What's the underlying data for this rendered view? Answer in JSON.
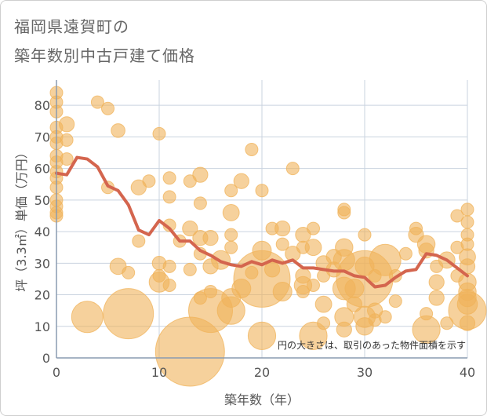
{
  "title_line1": "福岡県遠賀町の",
  "title_line2": "築年数別中古戸建て価格",
  "chart_data": {
    "type": "scatter",
    "title": "福岡県遠賀町の築年数別中古戸建て価格",
    "xlabel": "築年数（年）",
    "ylabel": "坪（3.3㎡）単価（万円）",
    "xlim": [
      0,
      40
    ],
    "ylim": [
      0,
      88
    ],
    "xticks": [
      0,
      10,
      20,
      30,
      40
    ],
    "yticks": [
      0,
      10,
      20,
      30,
      40,
      50,
      60,
      70,
      80
    ],
    "grid": true,
    "note": "円の大きさは、取引のあった物件面積を示す",
    "colors": {
      "bubble": "#f0b35a",
      "line": "#d4654e",
      "grid": "#c9d3df",
      "axis": "#8a9bb0"
    },
    "series": [
      {
        "name": "",
        "kind": "bubble",
        "points": [
          {
            "x": 0,
            "y": 84,
            "s": 1
          },
          {
            "x": 0,
            "y": 81,
            "s": 1
          },
          {
            "x": 0,
            "y": 78,
            "s": 1
          },
          {
            "x": 0,
            "y": 73,
            "s": 1
          },
          {
            "x": 0,
            "y": 70,
            "s": 1
          },
          {
            "x": 0,
            "y": 68,
            "s": 1
          },
          {
            "x": 0,
            "y": 64,
            "s": 1
          },
          {
            "x": 0,
            "y": 62,
            "s": 1
          },
          {
            "x": 0,
            "y": 59,
            "s": 1
          },
          {
            "x": 0,
            "y": 57,
            "s": 1
          },
          {
            "x": 0,
            "y": 54,
            "s": 1
          },
          {
            "x": 0,
            "y": 50,
            "s": 1
          },
          {
            "x": 0,
            "y": 48,
            "s": 1
          },
          {
            "x": 0,
            "y": 46,
            "s": 1
          },
          {
            "x": 0,
            "y": 45,
            "s": 1
          },
          {
            "x": 1,
            "y": 74,
            "s": 1.2
          },
          {
            "x": 1,
            "y": 69,
            "s": 1
          },
          {
            "x": 1,
            "y": 63,
            "s": 1
          },
          {
            "x": 4,
            "y": 81,
            "s": 1
          },
          {
            "x": 5,
            "y": 79,
            "s": 1
          },
          {
            "x": 6,
            "y": 72,
            "s": 1.1
          },
          {
            "x": 5,
            "y": 54,
            "s": 1
          },
          {
            "x": 8,
            "y": 54,
            "s": 1.2
          },
          {
            "x": 9,
            "y": 56,
            "s": 1
          },
          {
            "x": 8,
            "y": 37,
            "s": 1
          },
          {
            "x": 7,
            "y": 27,
            "s": 1
          },
          {
            "x": 6,
            "y": 29,
            "s": 1.3
          },
          {
            "x": 3,
            "y": 13,
            "s": 2.5
          },
          {
            "x": 7,
            "y": 14,
            "s": 4
          },
          {
            "x": 10,
            "y": 71,
            "s": 1
          },
          {
            "x": 10,
            "y": 30,
            "s": 1.1
          },
          {
            "x": 10,
            "y": 26,
            "s": 1
          },
          {
            "x": 10,
            "y": 24,
            "s": 1.6
          },
          {
            "x": 11,
            "y": 57,
            "s": 1
          },
          {
            "x": 11,
            "y": 51,
            "s": 1
          },
          {
            "x": 11,
            "y": 42,
            "s": 1
          },
          {
            "x": 11,
            "y": 29,
            "s": 1
          },
          {
            "x": 11,
            "y": 23,
            "s": 1
          },
          {
            "x": 12,
            "y": 37,
            "s": 1
          },
          {
            "x": 13,
            "y": 56,
            "s": 1
          },
          {
            "x": 13,
            "y": 41,
            "s": 1.2
          },
          {
            "x": 13,
            "y": 28,
            "s": 1
          },
          {
            "x": 13,
            "y": 2,
            "s": 5.5
          },
          {
            "x": 14,
            "y": 58,
            "s": 1.2
          },
          {
            "x": 14,
            "y": 49,
            "s": 1
          },
          {
            "x": 14,
            "y": 38,
            "s": 1.2
          },
          {
            "x": 14,
            "y": 33,
            "s": 1
          },
          {
            "x": 14,
            "y": 19,
            "s": 1
          },
          {
            "x": 15,
            "y": 38,
            "s": 1.2
          },
          {
            "x": 15,
            "y": 29,
            "s": 1.2
          },
          {
            "x": 15,
            "y": 21,
            "s": 1
          },
          {
            "x": 15,
            "y": 15,
            "s": 3.5
          },
          {
            "x": 16,
            "y": 31,
            "s": 1.5
          },
          {
            "x": 17,
            "y": 53,
            "s": 1
          },
          {
            "x": 17,
            "y": 46,
            "s": 1.3
          },
          {
            "x": 17,
            "y": 39,
            "s": 1
          },
          {
            "x": 17,
            "y": 35,
            "s": 1
          },
          {
            "x": 17,
            "y": 19,
            "s": 1.5
          },
          {
            "x": 17,
            "y": 15,
            "s": 2.2
          },
          {
            "x": 18,
            "y": 56,
            "s": 1.2
          },
          {
            "x": 18,
            "y": 22,
            "s": 1.5
          },
          {
            "x": 19,
            "y": 66,
            "s": 1
          },
          {
            "x": 19,
            "y": 27,
            "s": 1
          },
          {
            "x": 20,
            "y": 53,
            "s": 1
          },
          {
            "x": 20,
            "y": 34,
            "s": 1.5
          },
          {
            "x": 20,
            "y": 25,
            "s": 4.5
          },
          {
            "x": 20,
            "y": 7,
            "s": 2.2
          },
          {
            "x": 21,
            "y": 41,
            "s": 1
          },
          {
            "x": 21,
            "y": 28,
            "s": 1.2
          },
          {
            "x": 22,
            "y": 41,
            "s": 1.2
          },
          {
            "x": 22,
            "y": 36,
            "s": 1
          },
          {
            "x": 22,
            "y": 21,
            "s": 1.5
          },
          {
            "x": 23,
            "y": 60,
            "s": 1
          },
          {
            "x": 23,
            "y": 33,
            "s": 1.2
          },
          {
            "x": 24,
            "y": 39,
            "s": 1.2
          },
          {
            "x": 24,
            "y": 35,
            "s": 1
          },
          {
            "x": 24,
            "y": 26,
            "s": 1.2
          },
          {
            "x": 24,
            "y": 23,
            "s": 1.4
          },
          {
            "x": 24,
            "y": 21,
            "s": 1
          },
          {
            "x": 25,
            "y": 41,
            "s": 1
          },
          {
            "x": 25,
            "y": 35,
            "s": 1.3
          },
          {
            "x": 25,
            "y": 23,
            "s": 1
          },
          {
            "x": 25,
            "y": 7,
            "s": 2.2
          },
          {
            "x": 26,
            "y": 30,
            "s": 1.2
          },
          {
            "x": 26,
            "y": 26,
            "s": 1
          },
          {
            "x": 26,
            "y": 17,
            "s": 1.3
          },
          {
            "x": 26,
            "y": 11,
            "s": 1
          },
          {
            "x": 27,
            "y": 32,
            "s": 1.2
          },
          {
            "x": 27,
            "y": 28,
            "s": 1.2
          },
          {
            "x": 28,
            "y": 47,
            "s": 1
          },
          {
            "x": 28,
            "y": 46,
            "s": 1
          },
          {
            "x": 28,
            "y": 35,
            "s": 1.4
          },
          {
            "x": 28,
            "y": 31,
            "s": 1.7
          },
          {
            "x": 28,
            "y": 22,
            "s": 1.8
          },
          {
            "x": 28,
            "y": 13,
            "s": 1.5
          },
          {
            "x": 28,
            "y": 9,
            "s": 1.2
          },
          {
            "x": 29,
            "y": 22,
            "s": 1.5
          },
          {
            "x": 29,
            "y": 17,
            "s": 1.2
          },
          {
            "x": 30,
            "y": 39,
            "s": 1
          },
          {
            "x": 30,
            "y": 29,
            "s": 1.5
          },
          {
            "x": 30,
            "y": 25,
            "s": 4.5
          },
          {
            "x": 30,
            "y": 13,
            "s": 1.7
          },
          {
            "x": 30,
            "y": 10,
            "s": 1.4
          },
          {
            "x": 31,
            "y": 26,
            "s": 1
          },
          {
            "x": 31,
            "y": 15,
            "s": 1.2
          },
          {
            "x": 31,
            "y": 12,
            "s": 1
          },
          {
            "x": 32,
            "y": 31,
            "s": 2.5
          },
          {
            "x": 32,
            "y": 13,
            "s": 1
          },
          {
            "x": 33,
            "y": 26,
            "s": 1
          },
          {
            "x": 33,
            "y": 18,
            "s": 1
          },
          {
            "x": 34,
            "y": 33,
            "s": 1
          },
          {
            "x": 35,
            "y": 41,
            "s": 1
          },
          {
            "x": 35,
            "y": 39,
            "s": 1.2
          },
          {
            "x": 36,
            "y": 36,
            "s": 1.4
          },
          {
            "x": 36,
            "y": 34,
            "s": 1.2
          },
          {
            "x": 36,
            "y": 14,
            "s": 1
          },
          {
            "x": 36,
            "y": 9,
            "s": 2.2
          },
          {
            "x": 37,
            "y": 29,
            "s": 1
          },
          {
            "x": 37,
            "y": 24,
            "s": 1.2
          },
          {
            "x": 37,
            "y": 19,
            "s": 1.2
          },
          {
            "x": 38,
            "y": 31,
            "s": 1.3
          },
          {
            "x": 38,
            "y": 11,
            "s": 1
          },
          {
            "x": 39,
            "y": 45,
            "s": 1
          },
          {
            "x": 39,
            "y": 35,
            "s": 1
          },
          {
            "x": 39,
            "y": 26,
            "s": 1
          },
          {
            "x": 40,
            "y": 47,
            "s": 1
          },
          {
            "x": 40,
            "y": 43,
            "s": 1
          },
          {
            "x": 40,
            "y": 39,
            "s": 1
          },
          {
            "x": 40,
            "y": 36,
            "s": 1
          },
          {
            "x": 40,
            "y": 32,
            "s": 1.3
          },
          {
            "x": 40,
            "y": 29,
            "s": 1.2
          },
          {
            "x": 40,
            "y": 24,
            "s": 1.4
          },
          {
            "x": 40,
            "y": 21,
            "s": 1.4
          },
          {
            "x": 40,
            "y": 19,
            "s": 1.4
          },
          {
            "x": 40,
            "y": 17,
            "s": 1.6
          },
          {
            "x": 40,
            "y": 15,
            "s": 3
          },
          {
            "x": 40,
            "y": 11,
            "s": 1.2
          }
        ]
      },
      {
        "name": "",
        "kind": "line",
        "x": [
          0,
          1,
          2,
          3,
          4,
          5,
          6,
          7,
          8,
          9,
          10,
          11,
          12,
          13,
          14,
          15,
          16,
          17,
          18,
          19,
          20,
          21,
          22,
          23,
          24,
          25,
          26,
          27,
          28,
          29,
          30,
          31,
          32,
          33,
          34,
          35,
          36,
          37,
          38,
          39,
          40
        ],
        "y": [
          58.5,
          58,
          63.5,
          63,
          60.5,
          54.5,
          53,
          48.5,
          40.5,
          39,
          43.5,
          41,
          37,
          37,
          34,
          32.5,
          30.5,
          29.5,
          29,
          30.5,
          29.5,
          31,
          30,
          31,
          28.5,
          28.5,
          28,
          27.5,
          27.5,
          26,
          25.5,
          22.5,
          23,
          25.5,
          27.5,
          28,
          33,
          32.5,
          31,
          28.5,
          26
        ]
      }
    ]
  }
}
